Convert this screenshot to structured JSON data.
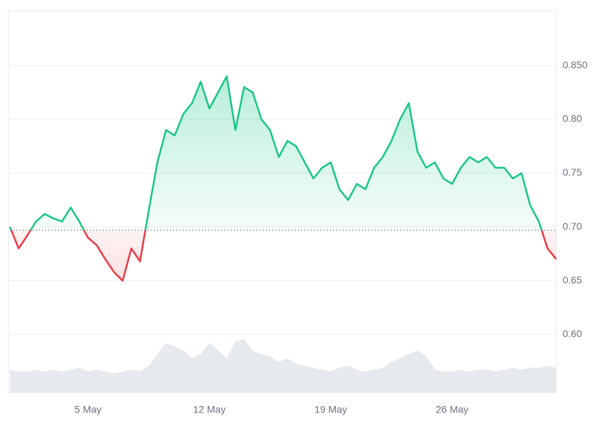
{
  "chart_data": {
    "type": "line",
    "categories": [
      null,
      null,
      null,
      null,
      null,
      null,
      null,
      null,
      null,
      "5 May",
      null,
      null,
      null,
      null,
      null,
      null,
      null,
      null,
      null,
      null,
      null,
      null,
      null,
      "12 May",
      null,
      null,
      null,
      null,
      null,
      null,
      null,
      null,
      null,
      null,
      null,
      null,
      null,
      "19 May",
      null,
      null,
      null,
      null,
      null,
      null,
      null,
      null,
      null,
      null,
      null,
      null,
      null,
      "26 May",
      null,
      null,
      null,
      null,
      null,
      null,
      null,
      null,
      null,
      null,
      null,
      null
    ],
    "series": [
      {
        "color": "#16c784",
        "below_color": "#ea3943",
        "baseline": 0.697,
        "values": [
          0.7,
          0.68,
          0.692,
          0.705,
          0.712,
          0.708,
          0.705,
          0.718,
          0.705,
          0.69,
          0.683,
          0.67,
          0.658,
          0.65,
          0.68,
          0.668,
          0.715,
          0.76,
          0.79,
          0.785,
          0.805,
          0.815,
          0.835,
          0.81,
          0.825,
          0.84,
          0.79,
          0.83,
          0.825,
          0.8,
          0.79,
          0.765,
          0.78,
          0.775,
          0.76,
          0.745,
          0.755,
          0.76,
          0.735,
          0.725,
          0.74,
          0.735,
          0.755,
          0.765,
          0.78,
          0.8,
          0.815,
          0.77,
          0.755,
          0.76,
          0.745,
          0.74,
          0.755,
          0.765,
          0.76,
          0.765,
          0.755,
          0.755,
          0.745,
          0.75,
          0.72,
          0.705,
          0.68,
          0.67
        ]
      },
      {
        "axis": "y2",
        "color": "#e6e9ee",
        "values": [
          12,
          11,
          11,
          12,
          11,
          12,
          11,
          12,
          13,
          11,
          12,
          11,
          10,
          11,
          12,
          11,
          14,
          20,
          26,
          24,
          22,
          18,
          20,
          26,
          22,
          18,
          27,
          28,
          22,
          20,
          19,
          16,
          18,
          15,
          14,
          13,
          12,
          11,
          13,
          14,
          12,
          11,
          12,
          13,
          16,
          18,
          20,
          22,
          19,
          12,
          11,
          11,
          12,
          11,
          12,
          12,
          11,
          12,
          13,
          12,
          13,
          13,
          14,
          13
        ]
      }
    ],
    "ylim": [
      0.546,
      0.901
    ],
    "yticks": [
      {
        "value": 0.6,
        "label": "0.60"
      },
      {
        "value": 0.65,
        "label": "0.65"
      },
      {
        "value": 0.7,
        "label": "0.70"
      },
      {
        "value": 0.75,
        "label": "0.75"
      },
      {
        "value": 0.8,
        "label": "0.80"
      },
      {
        "value": 0.85,
        "label": "0.850"
      }
    ],
    "y2lim": [
      0,
      200
    ],
    "grid": true
  }
}
